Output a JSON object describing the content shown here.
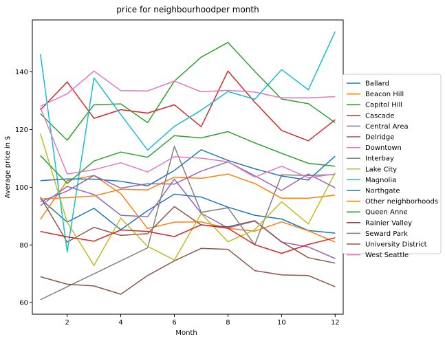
{
  "chart_data": {
    "type": "line",
    "title": "price for neighbourhoodper month",
    "xlabel": "Month",
    "ylabel": "Average price in $",
    "xlim": [
      0.7,
      12.3
    ],
    "ylim": [
      56,
      158
    ],
    "x_ticks": [
      2,
      4,
      6,
      8,
      10,
      12
    ],
    "y_ticks": [
      60,
      80,
      100,
      120,
      140
    ],
    "grid": false,
    "legend_position": "right",
    "x": [
      1,
      2,
      3,
      4,
      5,
      6,
      7,
      8,
      9,
      10,
      11,
      12
    ],
    "series": [
      {
        "name": "Ballard",
        "color": "#1f77b4",
        "values": [
          96.0,
          87.9,
          92.7,
          85.3,
          91.9,
          97.6,
          96.6,
          93.1,
          90.3,
          89.0,
          85.0,
          84.1
        ]
      },
      {
        "name": "Beacon Hill",
        "color": "#ff7f0e",
        "values": [
          88.9,
          102.3,
          104.1,
          97.8,
          85.7,
          87.9,
          88.0,
          85.8,
          84.8,
          88.0,
          84.9,
          81.0
        ]
      },
      {
        "name": "Capitol Hill",
        "color": "#2ca02c",
        "values": [
          125.5,
          116.3,
          128.6,
          128.9,
          122.4,
          136.8,
          145.1,
          150.2,
          140.2,
          130.6,
          129.0,
          122.4
        ]
      },
      {
        "name": "Cascade",
        "color": "#d62728",
        "values": [
          126.8,
          136.5,
          123.9,
          126.9,
          125.7,
          128.6,
          121.0,
          140.3,
          129.5,
          119.7,
          116.1,
          123.4
        ]
      },
      {
        "name": "Central Area",
        "color": "#9467bd",
        "values": [
          93.6,
          100.3,
          97.5,
          90.3,
          89.8,
          102.8,
          91.0,
          85.9,
          88.3,
          81.0,
          79.3,
          75.3
        ]
      },
      {
        "name": "Delridge",
        "color": "#8c564b",
        "values": [
          96.6,
          81.0,
          86.1,
          83.3,
          83.9,
          93.3,
          86.9,
          86.3,
          88.4,
          81.1,
          75.6,
          73.7
        ]
      },
      {
        "name": "Downtown",
        "color": "#e377c2",
        "values": [
          128.1,
          132.4,
          140.3,
          133.5,
          133.4,
          136.8,
          133.1,
          133.6,
          133.0,
          131.0,
          131.0,
          131.4
        ]
      },
      {
        "name": "Interbay",
        "color": "#7f7f7f",
        "values": [
          61.0,
          65.5,
          70.0,
          74.5,
          79.0,
          114.2,
          91.3,
          92.9,
          80.0,
          104.3,
          104.1,
          104.4
        ]
      },
      {
        "name": "Lake City",
        "color": "#bcbd22",
        "values": [
          118.6,
          87.9,
          72.9,
          89.3,
          79.5,
          74.8,
          90.9,
          81.1,
          85.3,
          95.0,
          87.3,
          105.0
        ]
      },
      {
        "name": "Magnolia",
        "color": "#17becf",
        "values": [
          146.2,
          77.6,
          137.9,
          125.2,
          112.9,
          121.1,
          126.7,
          133.2,
          130.5,
          140.8,
          133.8,
          154.0
        ]
      },
      {
        "name": "Northgate",
        "color": "#1f77b4",
        "values": [
          102.3,
          102.9,
          102.8,
          102.1,
          100.5,
          105.8,
          113.0,
          109.3,
          106.4,
          103.9,
          102.5,
          110.8
        ]
      },
      {
        "name": "Other neighborhoods",
        "color": "#ff7f0e",
        "values": [
          96.0,
          96.4,
          97.0,
          99.3,
          99.1,
          103.5,
          103.1,
          104.6,
          101.3,
          96.2,
          96.2,
          97.3
        ]
      },
      {
        "name": "Queen Anne",
        "color": "#2ca02c",
        "values": [
          111.0,
          101.3,
          109.1,
          112.2,
          110.4,
          117.9,
          117.1,
          119.3,
          115.4,
          111.8,
          108.3,
          107.3
        ]
      },
      {
        "name": "Rainier Valley",
        "color": "#d62728",
        "values": [
          84.7,
          82.8,
          81.3,
          85.2,
          84.7,
          82.9,
          87.0,
          85.8,
          80.1,
          77.1,
          80.2,
          82.5
        ]
      },
      {
        "name": "Seward Park",
        "color": "#9467bd",
        "values": [
          95.0,
          98.7,
          104.1,
          99.7,
          101.2,
          101.1,
          105.6,
          108.8,
          104.0,
          98.9,
          104.6,
          99.8
        ]
      },
      {
        "name": "University District",
        "color": "#8c564b",
        "values": [
          69.0,
          66.4,
          65.8,
          62.9,
          69.4,
          74.5,
          78.8,
          78.5,
          71.1,
          69.6,
          69.4,
          65.5
        ]
      },
      {
        "name": "West Seattle",
        "color": "#e377c2",
        "values": [
          127.6,
          104.6,
          106.1,
          108.5,
          105.3,
          110.6,
          110.1,
          108.8,
          103.5,
          107.3,
          103.3,
          104.6
        ]
      }
    ]
  }
}
